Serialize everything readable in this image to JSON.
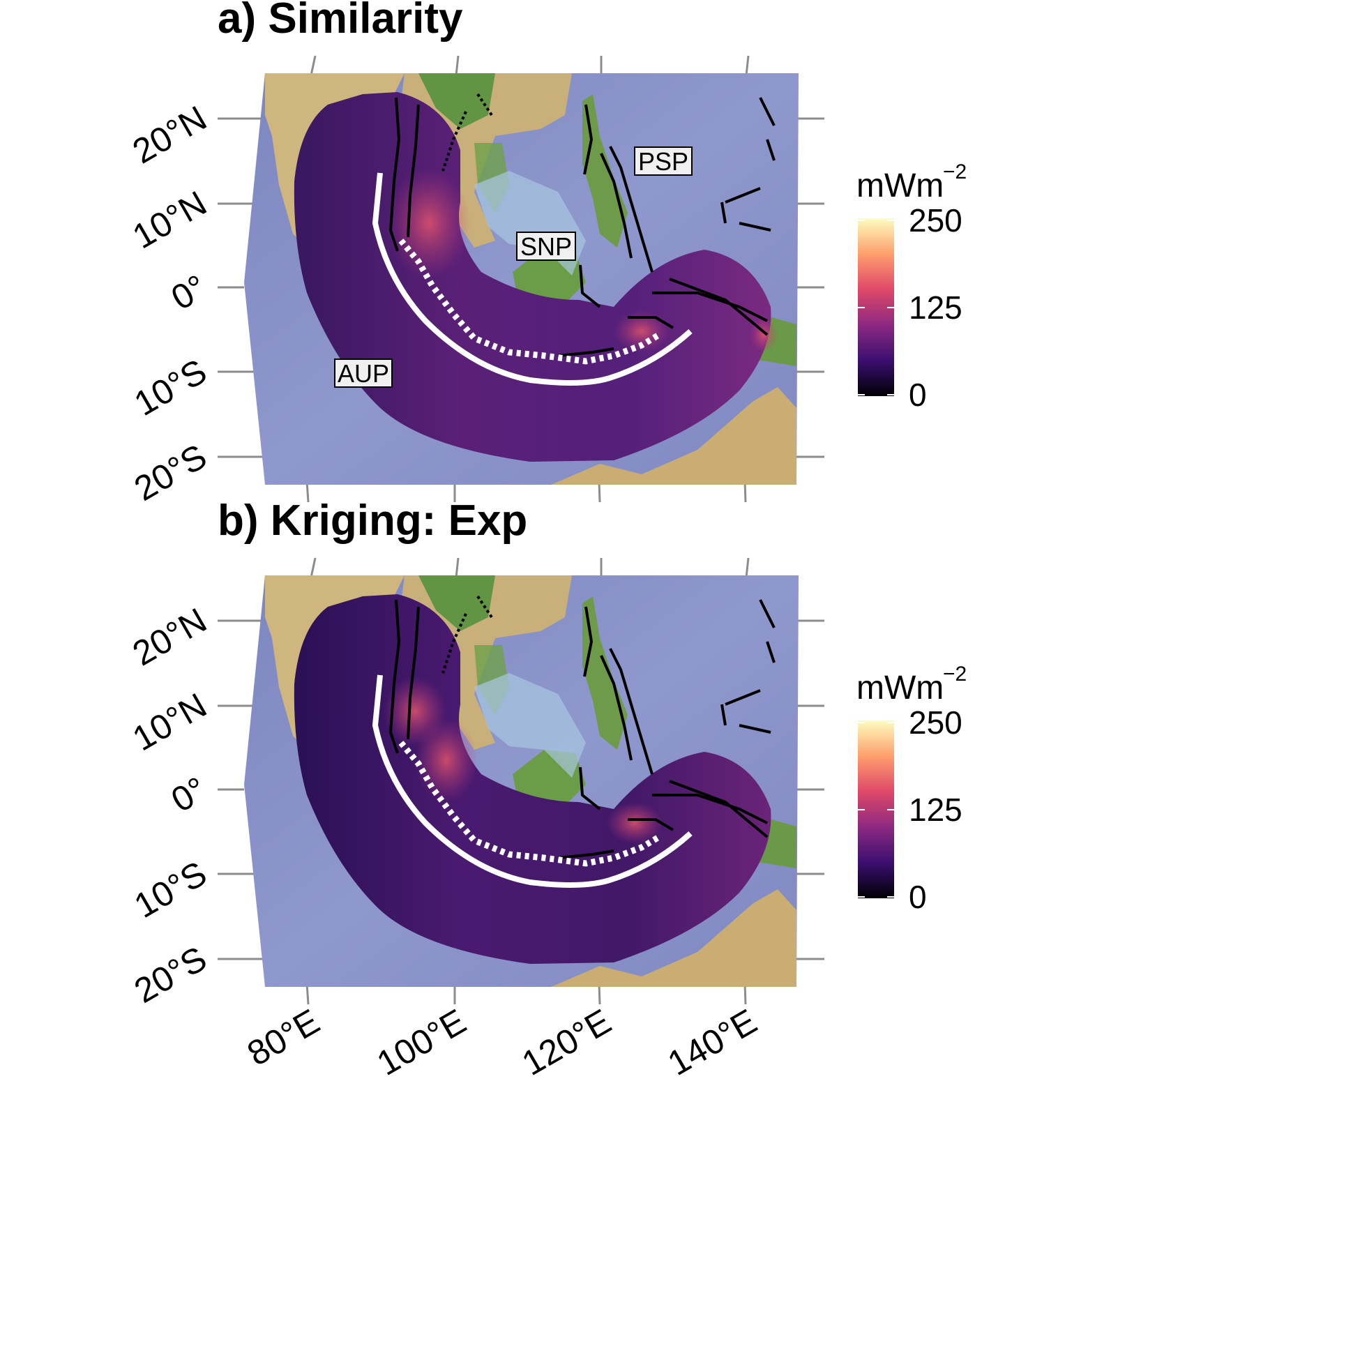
{
  "panels": [
    {
      "id": "a",
      "title": "a) Similarity"
    },
    {
      "id": "b",
      "title": "b) Kriging: Exp"
    }
  ],
  "latitude_labels": [
    "20°N",
    "10°N",
    "0°",
    "10°S",
    "20°S"
  ],
  "longitude_labels": [
    "80°E",
    "100°E",
    "120°E",
    "140°E"
  ],
  "plate_labels": [
    "PSP",
    "SNP",
    "AUP"
  ],
  "legend": {
    "unit": "mWm",
    "unit_exponent": "−2",
    "ticks": [
      "250",
      "125",
      "0"
    ],
    "range": [
      0,
      250
    ]
  },
  "colors": {
    "ocean": "#8a93c7",
    "land": "#c8b077",
    "grid": "#8c8c8c",
    "heatflow_low": "#000004",
    "heatflow_high": "#fcfdbf",
    "trench_line": "#ffffff"
  }
}
